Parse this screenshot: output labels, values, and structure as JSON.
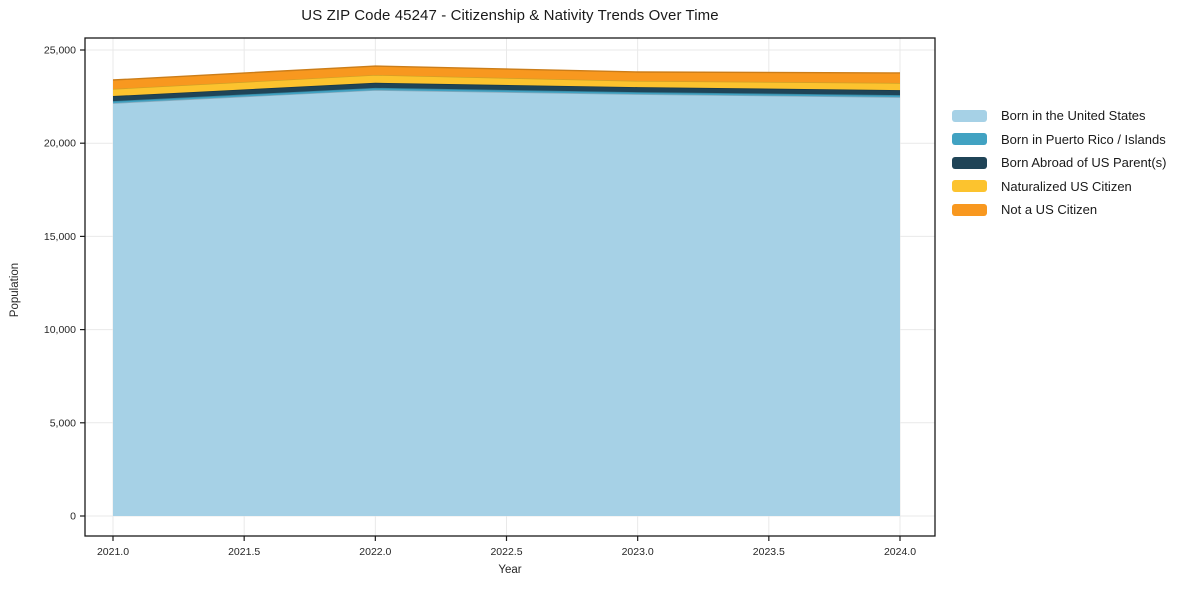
{
  "title": "US ZIP Code 45247 - Citizenship & Nativity Trends Over Time",
  "chart_data": {
    "type": "area",
    "stacked": true,
    "title": "US ZIP Code 45247 - Citizenship & Nativity Trends Over Time",
    "xlabel": "Year",
    "ylabel": "Population",
    "x": [
      2021,
      2022,
      2023,
      2024
    ],
    "series": [
      {
        "name": "Born in the United States",
        "color": "#a6d1e6",
        "values": [
          22150,
          22850,
          22630,
          22470
        ]
      },
      {
        "name": "Born in Puerto Rico / Islands",
        "color": "#41a2c2",
        "values": [
          110,
          120,
          110,
          110
        ]
      },
      {
        "name": "Born Abroad of US Parent(s)",
        "color": "#1f4457",
        "values": [
          270,
          270,
          270,
          270
        ]
      },
      {
        "name": "Naturalized US Citizen",
        "color": "#fcc32e",
        "values": [
          380,
          420,
          330,
          380
        ]
      },
      {
        "name": "Not a US Citizen",
        "color": "#f8981f",
        "values": [
          480,
          480,
          480,
          540
        ]
      }
    ],
    "totals": [
      23390,
      24140,
      23820,
      23770
    ],
    "x_tick_labels": [
      "2021.0",
      "2021.5",
      "2022.0",
      "2022.5",
      "2023.0",
      "2023.5",
      "2024.0"
    ],
    "y_tick_labels": [
      "0",
      "5,000",
      "10,000",
      "15,000",
      "20,000",
      "25,000"
    ],
    "xlim": [
      2020.89,
      2024.13
    ],
    "ylim": [
      -1070,
      25630
    ],
    "grid": true,
    "legend_position": "right-outside"
  }
}
